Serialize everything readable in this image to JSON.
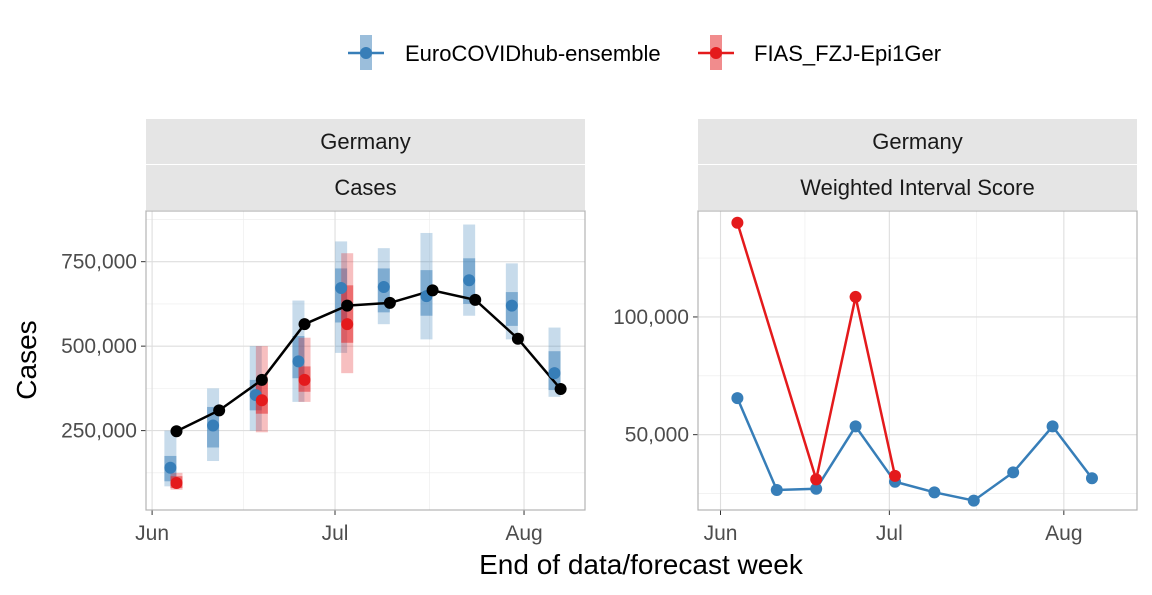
{
  "legend": {
    "items": [
      {
        "label": "EuroCOVIDhub-ensemble",
        "color": "#377eb8"
      },
      {
        "label": "FIAS_FZJ-Epi1Ger",
        "color": "#e41a1c"
      }
    ]
  },
  "x_axis_title": "End of data/forecast week",
  "chart_data": [
    {
      "type": "line",
      "strips": [
        "Germany",
        "Cases"
      ],
      "ylabel": "Cases",
      "xlabel": "End of data/forecast week",
      "x_ticks": [
        {
          "label": "Jun",
          "date": "2021-06-01"
        },
        {
          "label": "Jul",
          "date": "2021-07-01"
        },
        {
          "label": "Aug",
          "date": "2021-08-01"
        }
      ],
      "y_ticks": [
        250000,
        500000,
        750000
      ],
      "y_tick_labels": [
        "250,000",
        "500,000",
        "750,000"
      ],
      "xlim": [
        "2021-05-31",
        "2021-08-11"
      ],
      "ylim": [
        15000,
        900000
      ],
      "grid": true,
      "observed": {
        "name": "",
        "color": "#000000",
        "x": [
          "2021-06-05",
          "2021-06-12",
          "2021-06-19",
          "2021-06-26",
          "2021-07-03",
          "2021-07-10",
          "2021-07-17",
          "2021-07-24",
          "2021-07-31",
          "2021-08-07"
        ],
        "y": [
          248000,
          310000,
          400000,
          565000,
          620000,
          628000,
          665000,
          637000,
          522000,
          373000
        ]
      },
      "series": [
        {
          "name": "EuroCOVIDhub-ensemble",
          "color": "#377eb8",
          "x": [
            "2021-06-04",
            "2021-06-11",
            "2021-06-18",
            "2021-06-25",
            "2021-07-02",
            "2021-07-09",
            "2021-07-16",
            "2021-07-23",
            "2021-07-30",
            "2021-08-06"
          ],
          "median": [
            140000,
            265000,
            355000,
            455000,
            672000,
            675000,
            648000,
            695000,
            620000,
            420000
          ],
          "inner": [
            [
              100000,
              175000
            ],
            [
              200000,
              320000
            ],
            [
              310000,
              400000
            ],
            [
              405000,
              530000
            ],
            [
              570000,
              730000
            ],
            [
              600000,
              730000
            ],
            [
              590000,
              725000
            ],
            [
              625000,
              760000
            ],
            [
              560000,
              660000
            ],
            [
              370000,
              485000
            ]
          ],
          "outer": [
            [
              85000,
              250000
            ],
            [
              160000,
              375000
            ],
            [
              250000,
              500000
            ],
            [
              335000,
              635000
            ],
            [
              480000,
              810000
            ],
            [
              565000,
              790000
            ],
            [
              520000,
              835000
            ],
            [
              590000,
              860000
            ],
            [
              520000,
              745000
            ],
            [
              350000,
              555000
            ]
          ]
        },
        {
          "name": "FIAS_FZJ-Epi1Ger",
          "color": "#e41a1c",
          "x": [
            "2021-06-05",
            "2021-06-19",
            "2021-06-26",
            "2021-07-03"
          ],
          "median": [
            95000,
            340000,
            400000,
            565000
          ],
          "inner": [
            [
              80000,
              115000
            ],
            [
              300000,
              395000
            ],
            [
              365000,
              440000
            ],
            [
              510000,
              680000
            ]
          ],
          "outer": [
            [
              75000,
              125000
            ],
            [
              245000,
              500000
            ],
            [
              335000,
              525000
            ],
            [
              420000,
              775000
            ]
          ]
        }
      ]
    },
    {
      "type": "line",
      "strips": [
        "Germany",
        "Weighted Interval Score"
      ],
      "xlabel": "End of data/forecast week",
      "x_ticks": [
        {
          "label": "Jun",
          "date": "2021-06-01"
        },
        {
          "label": "Jul",
          "date": "2021-07-01"
        },
        {
          "label": "Aug",
          "date": "2021-08-01"
        }
      ],
      "y_ticks": [
        50000,
        100000
      ],
      "y_tick_labels": [
        "50,000",
        "100,000"
      ],
      "xlim": [
        "2021-05-28",
        "2021-08-14"
      ],
      "ylim": [
        18000,
        145000
      ],
      "grid": true,
      "series": [
        {
          "name": "EuroCOVIDhub-ensemble",
          "color": "#377eb8",
          "x": [
            "2021-06-04",
            "2021-06-11",
            "2021-06-18",
            "2021-06-25",
            "2021-07-02",
            "2021-07-09",
            "2021-07-16",
            "2021-07-23",
            "2021-07-30",
            "2021-08-06"
          ],
          "y": [
            65500,
            26500,
            27000,
            53500,
            30000,
            25500,
            22000,
            34000,
            53500,
            31500
          ]
        },
        {
          "name": "FIAS_FZJ-Epi1Ger",
          "color": "#e41a1c",
          "x": [
            "2021-06-04",
            "2021-06-18",
            "2021-06-25",
            "2021-07-02"
          ],
          "y": [
            140000,
            31000,
            108500,
            32500
          ]
        }
      ]
    }
  ]
}
